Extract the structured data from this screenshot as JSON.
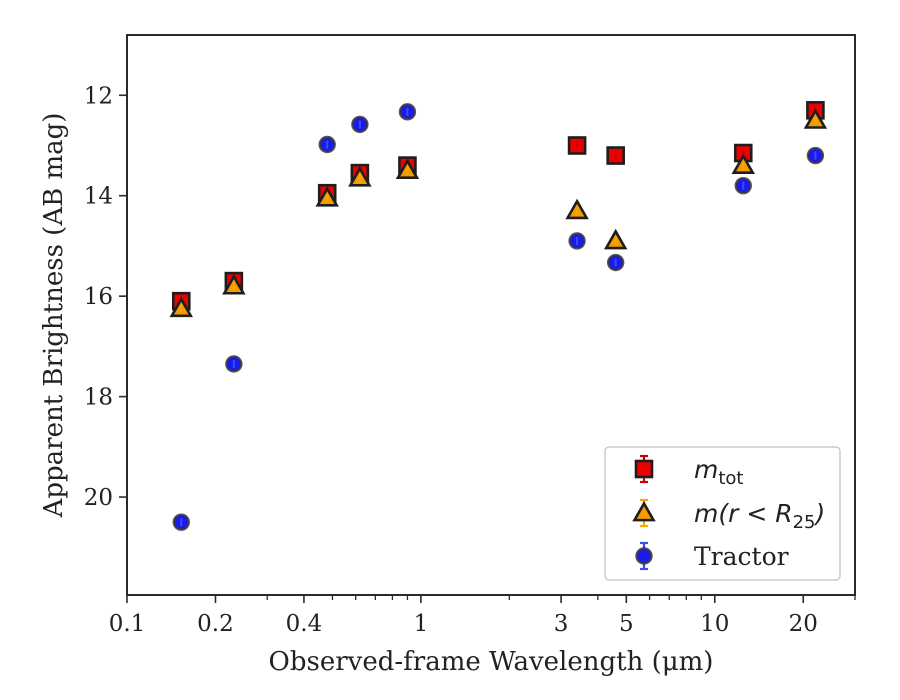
{
  "chart_data": {
    "type": "scatter",
    "xlabel": "Observed-frame Wavelength (μm)",
    "ylabel": "Apparent Brightness (AB mag)",
    "xscale": "log",
    "xlim": [
      0.1,
      30
    ],
    "ylim": [
      21.95,
      10.8
    ],
    "y_inverted": true,
    "grid": false,
    "legend_placement": "bottom-right",
    "xticks": [
      {
        "value": 0.1,
        "label": "0.1"
      },
      {
        "value": 0.2,
        "label": "0.2"
      },
      {
        "value": 0.4,
        "label": "0.4"
      },
      {
        "value": 1,
        "label": "1"
      },
      {
        "value": 3,
        "label": "3"
      },
      {
        "value": 5,
        "label": "5"
      },
      {
        "value": 10,
        "label": "10"
      },
      {
        "value": 20,
        "label": "20"
      }
    ],
    "yticks": [
      {
        "value": 12,
        "label": "12"
      },
      {
        "value": 14,
        "label": "14"
      },
      {
        "value": 16,
        "label": "16"
      },
      {
        "value": 18,
        "label": "18"
      },
      {
        "value": 20,
        "label": "20"
      }
    ],
    "series": [
      {
        "name": "m_tot",
        "legend_main": "m",
        "legend_sub": "tot",
        "marker": "square",
        "color": "#ee0000",
        "errcolor": "#cc0000",
        "points": [
          {
            "x": 0.153,
            "y": 16.1
          },
          {
            "x": 0.231,
            "y": 15.7
          },
          {
            "x": 0.48,
            "y": 13.95
          },
          {
            "x": 0.62,
            "y": 13.55
          },
          {
            "x": 0.9,
            "y": 13.4
          },
          {
            "x": 3.4,
            "y": 13.0
          },
          {
            "x": 4.6,
            "y": 13.2
          },
          {
            "x": 12.5,
            "y": 13.15
          },
          {
            "x": 22.0,
            "y": 12.3
          }
        ]
      },
      {
        "name": "m(r < R_25)",
        "legend_main": "m(r < R",
        "legend_sub": "25",
        "legend_tail": ")",
        "marker": "triangle",
        "color": "#f59a00",
        "errcolor": "#f5a800",
        "points": [
          {
            "x": 0.153,
            "y": 16.25
          },
          {
            "x": 0.231,
            "y": 15.8
          },
          {
            "x": 0.48,
            "y": 14.05
          },
          {
            "x": 0.62,
            "y": 13.65
          },
          {
            "x": 0.9,
            "y": 13.5
          },
          {
            "x": 3.4,
            "y": 14.3
          },
          {
            "x": 4.6,
            "y": 14.9
          },
          {
            "x": 12.5,
            "y": 13.4
          },
          {
            "x": 22.0,
            "y": 12.5
          }
        ]
      },
      {
        "name": "Tractor",
        "legend_main": "Tractor",
        "marker": "circle",
        "color": "#1a1aee",
        "errcolor": "#3a4cf0",
        "points": [
          {
            "x": 0.153,
            "y": 20.5
          },
          {
            "x": 0.231,
            "y": 17.35
          },
          {
            "x": 0.48,
            "y": 12.98
          },
          {
            "x": 0.62,
            "y": 12.58
          },
          {
            "x": 0.9,
            "y": 12.33
          },
          {
            "x": 3.4,
            "y": 14.9
          },
          {
            "x": 4.6,
            "y": 15.33
          },
          {
            "x": 12.5,
            "y": 13.8
          },
          {
            "x": 22.0,
            "y": 13.2
          }
        ]
      }
    ]
  }
}
